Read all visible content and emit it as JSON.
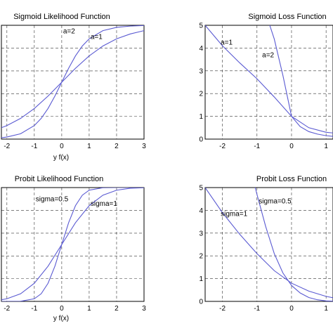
{
  "chart_data": [
    {
      "type": "line",
      "title": "Sigmoid Likelihood Function",
      "xlabel": "y f(x)",
      "ylabel": "",
      "xlim": [
        -2.2,
        3
      ],
      "ylim": [
        0,
        1
      ],
      "x_ticks": [
        -2,
        -1,
        0,
        1,
        2,
        3
      ],
      "y_ticks": [],
      "grid": true,
      "series_color": "#5a5ad2",
      "series": [
        {
          "label": "a=2",
          "x": [
            -2.2,
            -2,
            -1.5,
            -1,
            -0.75,
            -0.5,
            -0.25,
            0,
            0.25,
            0.5,
            0.75,
            1,
            1.5,
            2,
            2.5,
            3
          ],
          "values": [
            0.012,
            0.018,
            0.047,
            0.119,
            0.182,
            0.269,
            0.378,
            0.5,
            0.622,
            0.731,
            0.818,
            0.881,
            0.953,
            0.982,
            0.993,
            0.998
          ]
        },
        {
          "label": "a=1",
          "x": [
            -2.2,
            -2,
            -1.5,
            -1,
            -0.5,
            0,
            0.5,
            1,
            1.5,
            2,
            2.5,
            3
          ],
          "values": [
            0.1,
            0.119,
            0.182,
            0.269,
            0.378,
            0.5,
            0.622,
            0.731,
            0.818,
            0.881,
            0.924,
            0.953
          ]
        }
      ],
      "annotations": [
        {
          "text": "a=2",
          "x": 0.05,
          "y": 0.93
        },
        {
          "text": "a=1",
          "x": 1.05,
          "y": 0.88
        }
      ]
    },
    {
      "type": "line",
      "title": "Sigmoid Loss Function",
      "xlabel": "",
      "ylabel": "",
      "xlim": [
        -2.5,
        1.2
      ],
      "ylim": [
        0,
        5
      ],
      "x_ticks": [
        -2,
        -1,
        0,
        1
      ],
      "y_ticks": [
        0,
        1,
        2,
        3,
        4,
        5
      ],
      "grid": true,
      "series_color": "#5a5ad2",
      "series": [
        {
          "label": "a=1",
          "x": [
            -2.5,
            -2,
            -1.5,
            -1,
            -0.5,
            0,
            0.5,
            1,
            1.2
          ],
          "values": [
            5.0,
            4.1,
            3.35,
            2.65,
            1.85,
            1.0,
            0.5,
            0.3,
            0.27
          ]
        },
        {
          "label": "a=2",
          "x": [
            -0.63,
            -0.5,
            -0.25,
            0,
            0.25,
            0.5,
            0.75,
            1,
            1.2
          ],
          "values": [
            5.0,
            4.4,
            2.8,
            1.0,
            0.55,
            0.33,
            0.22,
            0.15,
            0.12
          ]
        }
      ],
      "annotations": [
        {
          "text": "a=1",
          "x": -2.05,
          "y": 4.15
        },
        {
          "text": "a=2",
          "x": -0.85,
          "y": 3.6
        }
      ]
    },
    {
      "type": "line",
      "title": "Probit Likelihood Function",
      "xlabel": "y f(x)",
      "ylabel": "",
      "xlim": [
        -2.2,
        3
      ],
      "ylim": [
        0,
        1
      ],
      "x_ticks": [
        -2,
        -1,
        0,
        1,
        2,
        3
      ],
      "y_ticks": [],
      "grid": true,
      "series_color": "#5a5ad2",
      "series": [
        {
          "label": "sigma=0.5",
          "x": [
            -2.2,
            -1.5,
            -1,
            -0.75,
            -0.5,
            -0.25,
            0,
            0.25,
            0.5,
            0.75,
            1,
            1.5,
            2,
            3
          ],
          "values": [
            0.0,
            0.001,
            0.023,
            0.067,
            0.159,
            0.309,
            0.5,
            0.691,
            0.841,
            0.933,
            0.977,
            0.999,
            1.0,
            1.0
          ]
        },
        {
          "label": "sigma=1",
          "x": [
            -2.2,
            -2,
            -1.5,
            -1,
            -0.5,
            0,
            0.5,
            1,
            1.5,
            2,
            2.5,
            3
          ],
          "values": [
            0.014,
            0.023,
            0.067,
            0.159,
            0.309,
            0.5,
            0.691,
            0.841,
            0.933,
            0.977,
            0.994,
            0.999
          ]
        }
      ],
      "annotations": [
        {
          "text": "sigma=0.5",
          "x": -0.95,
          "y": 0.88
        },
        {
          "text": "sigma=1",
          "x": 1.05,
          "y": 0.84
        }
      ]
    },
    {
      "type": "line",
      "title": "Probit Loss Function",
      "xlabel": "",
      "ylabel": "",
      "xlim": [
        -2.5,
        1.2
      ],
      "ylim": [
        0,
        5
      ],
      "x_ticks": [
        -2,
        -1,
        0,
        1
      ],
      "y_ticks": [
        0,
        1,
        2,
        3,
        4,
        5
      ],
      "grid": true,
      "series_color": "#5a5ad2",
      "series": [
        {
          "label": "sigma=1",
          "x": [
            -2.5,
            -2,
            -1.5,
            -1,
            -0.5,
            0,
            0.5,
            1,
            1.2
          ],
          "values": [
            5.0,
            3.9,
            2.95,
            2.1,
            1.35,
            0.8,
            0.45,
            0.22,
            0.16
          ]
        },
        {
          "label": "sigma=0.5",
          "x": [
            -1.05,
            -1,
            -0.75,
            -0.5,
            -0.25,
            0,
            0.25,
            0.5,
            0.75,
            1,
            1.2
          ],
          "values": [
            5.0,
            4.7,
            3.3,
            2.1,
            1.25,
            0.7,
            0.37,
            0.17,
            0.07,
            0.02,
            0.01
          ]
        }
      ],
      "annotations": [
        {
          "text": "sigma=0.5",
          "x": -0.95,
          "y": 4.3
        },
        {
          "text": "sigma=1",
          "x": -2.05,
          "y": 3.75
        }
      ]
    }
  ]
}
